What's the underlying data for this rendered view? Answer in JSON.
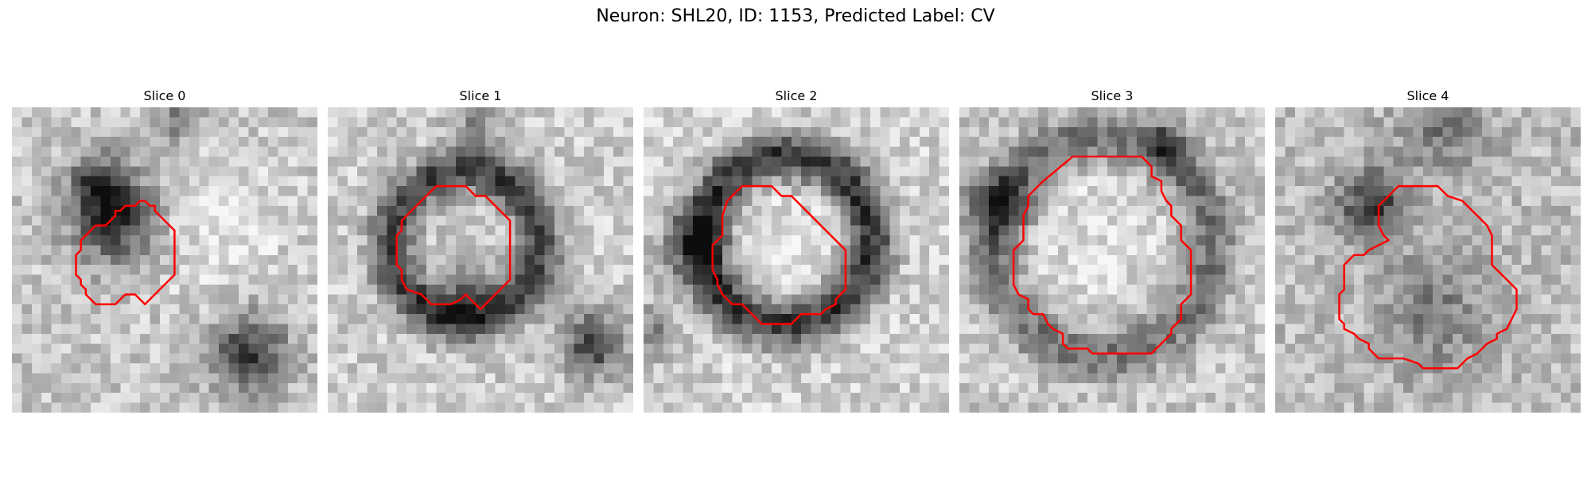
{
  "figure": {
    "title": "Neuron: SHL20, ID: 1153, Predicted Label: CV",
    "contour_color": "#ff0000",
    "colormap": "gray"
  },
  "slices": [
    {
      "title": "Slice 0"
    },
    {
      "title": "Slice 1"
    },
    {
      "title": "Slice 2"
    },
    {
      "title": "Slice 3"
    },
    {
      "title": "Slice 4"
    }
  ]
}
